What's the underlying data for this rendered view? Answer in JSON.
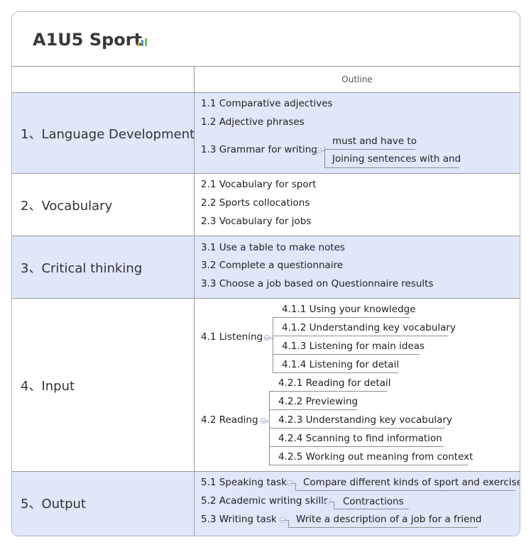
{
  "title": "A1U5 Sport",
  "header": {
    "outline_label": "Outline"
  },
  "rows": [
    {
      "label": "1、Language Development",
      "items": [
        "1.1 Comparative adjectives",
        "1.2 Adjective phrases",
        "1.3 Grammar for writing"
      ],
      "children_1_3": [
        "must and have to",
        "Joining sentences with and"
      ]
    },
    {
      "label": "2、Vocabulary",
      "items": [
        "2.1 Vocabulary for sport",
        "2.2 Sports collocations",
        "2.3 Vocabulary for jobs"
      ]
    },
    {
      "label": "3、Critical thinking",
      "items": [
        "3.1 Use a table to make notes",
        "3.2 Complete a questionnaire",
        "3.3 Choose a job based on Questionnaire results"
      ]
    },
    {
      "label": "4、Input",
      "listening": {
        "label": "4.1 Listening",
        "children": [
          "4.1.1 Using your knowledge",
          "4.1.2 Understanding key vocabulary",
          "4.1.3 Listening for main ideas",
          "4.1.4 Listening for detail"
        ]
      },
      "reading": {
        "label": "4.2 Reading",
        "children": [
          "4.2.1 Reading for detail",
          "4.2.2 Previewing",
          "4.2.3 Understanding key vocabulary",
          "4.2.4 Scanning to find information",
          "4.2.5 Working out meaning from context"
        ]
      }
    },
    {
      "label": "5、Output",
      "items": [
        {
          "label": "5.1 Speaking task",
          "child": "Compare different kinds of sport and exercise"
        },
        {
          "label": "5.2 Academic writing skills",
          "child": "Contractions"
        },
        {
          "label": "5.3 Writing task",
          "child": "Write a description of a job for a friend"
        }
      ]
    }
  ],
  "colors": {
    "band": "#dfe7f9",
    "line": "#9a9a9a",
    "knob": "#9bb0d6"
  }
}
